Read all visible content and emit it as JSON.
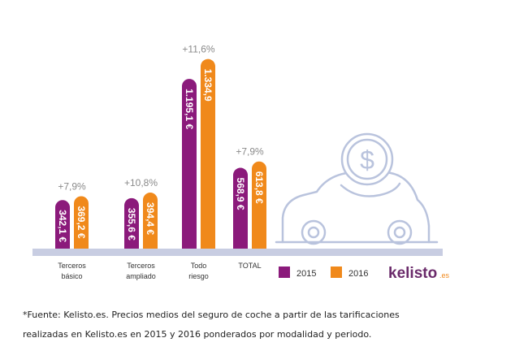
{
  "colors": {
    "series_2015": "#8b1a7b",
    "series_2016": "#f0891b",
    "baseline": "#c8cde2",
    "car_outline": "#b9c3dd",
    "brand": "#6a2a6a",
    "brand_suffix": "#f08a1e",
    "pct_text": "#8a8a8a"
  },
  "chart_data": {
    "type": "bar",
    "categories": [
      "Terceros\nbásico",
      "Terceros\nampliado",
      "Todo\nriesgo",
      "TOTAL"
    ],
    "series": [
      {
        "name": "2015",
        "values": [
          342.1,
          355.6,
          1195.1,
          568.9
        ],
        "labels": [
          "342,1 €",
          "355,6 €",
          "1.195,1 €",
          "568,9 €"
        ]
      },
      {
        "name": "2016",
        "values": [
          369.2,
          394.4,
          1334.9,
          613.8
        ],
        "labels": [
          "369,2 €",
          "394,4 €",
          "1.334,9",
          "613,8 €"
        ]
      }
    ],
    "annotations": [
      "+7,9%",
      "+10,8%",
      "+11,6%",
      "+7,9%"
    ],
    "ylim": [
      0,
      1350
    ],
    "grid": false,
    "legend": "bottom-right"
  },
  "legend": {
    "items": [
      "2015",
      "2016"
    ]
  },
  "icons": [
    "car-icon",
    "dollar-coin-icon"
  ],
  "brand": {
    "name": "kelisto",
    "suffix": ".es"
  },
  "footnote": {
    "line1": "*Fuente: Kelisto.es. Precios medios del seguro de coche a partir de las tarificaciones",
    "line2": "realizadas en Kelisto.es en 2015 y 2016 ponderados por modalidad y periodo."
  }
}
